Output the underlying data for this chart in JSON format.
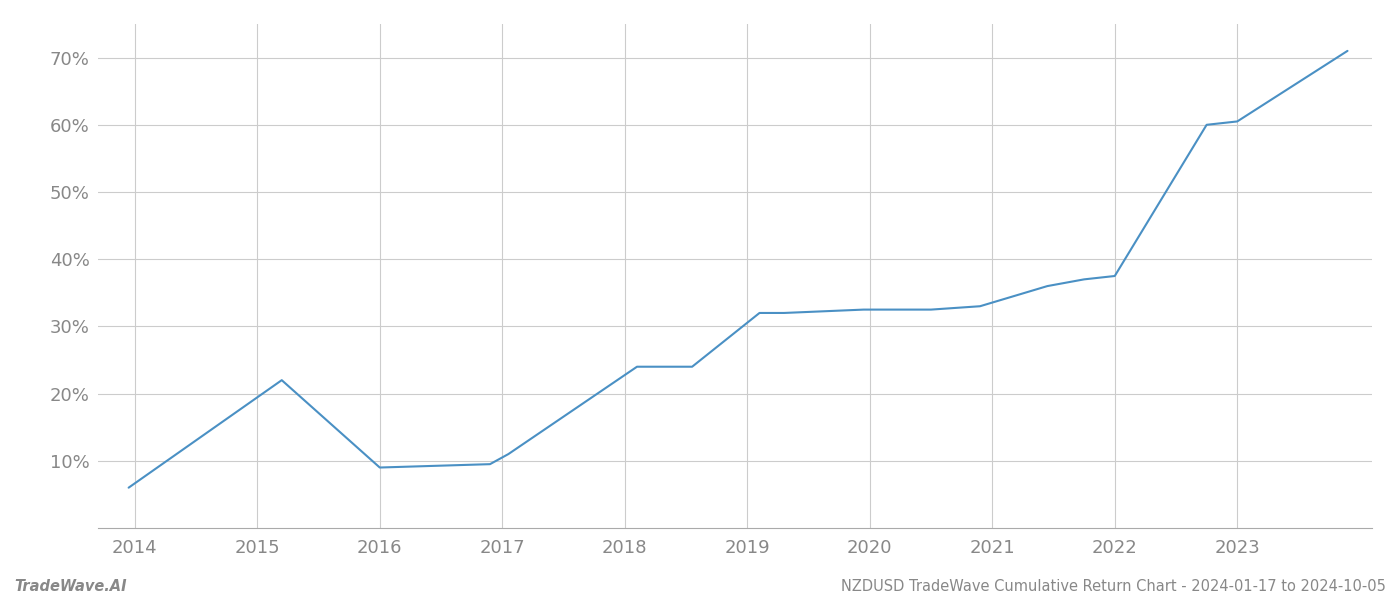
{
  "title": "",
  "footer_left": "TradeWave.AI",
  "footer_right": "NZDUSD TradeWave Cumulative Return Chart - 2024-01-17 to 2024-10-05",
  "line_color": "#4a90c4",
  "background_color": "#ffffff",
  "grid_color": "#cccccc",
  "x_years": [
    2014,
    2015,
    2016,
    2017,
    2018,
    2019,
    2020,
    2021,
    2022,
    2023
  ],
  "data_points": {
    "x": [
      2013.95,
      2015.2,
      2016.0,
      2016.9,
      2017.05,
      2018.1,
      2018.55,
      2019.1,
      2019.3,
      2019.95,
      2020.5,
      2020.9,
      2021.45,
      2021.6,
      2021.75,
      2022.0,
      2022.75,
      2023.0,
      2023.9
    ],
    "y": [
      6.0,
      22.0,
      9.0,
      9.5,
      11.0,
      24.0,
      24.0,
      32.0,
      32.0,
      32.5,
      32.5,
      33.0,
      36.0,
      36.5,
      37.0,
      37.5,
      60.0,
      60.5,
      71.0
    ]
  },
  "ylim": [
    0,
    75
  ],
  "yticks": [
    10,
    20,
    30,
    40,
    50,
    60,
    70
  ],
  "xlim": [
    2013.7,
    2024.1
  ],
  "line_width": 1.5,
  "font_color": "#888888",
  "footer_fontsize": 10.5,
  "tick_fontsize": 13
}
